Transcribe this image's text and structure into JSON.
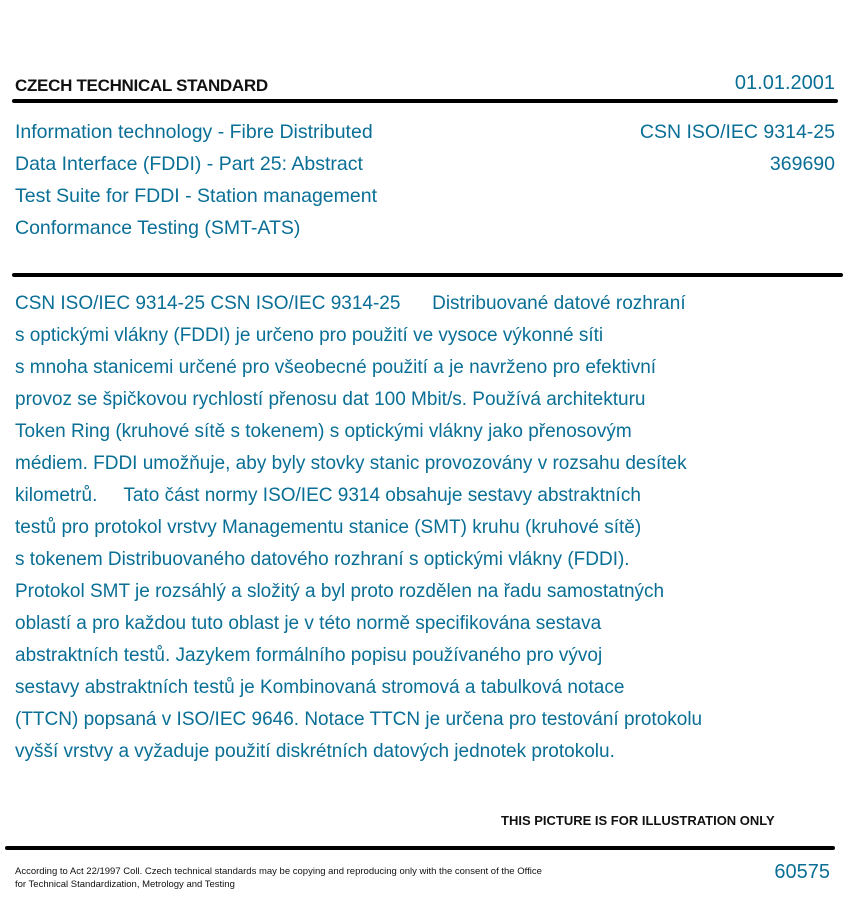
{
  "header": {
    "label": "CZECH TECHNICAL STANDARD",
    "date": "01.01.2001"
  },
  "title_lines": [
    "Information technology - Fibre Distributed",
    "Data Interface (FDDI) - Part 25: Abstract",
    "Test Suite for FDDI - Station management",
    "Conformance Testing (SMT-ATS)"
  ],
  "code": {
    "standard": "CSN ISO/IEC 9314-25",
    "catalog_number": "369690"
  },
  "body_lines": [
    "CSN ISO/IEC 9314-25 CSN ISO/IEC 9314-25      Distribuované datové rozhraní",
    "s optickými vlákny (FDDI) je určeno pro použití ve vysoce výkonné síti",
    "s mnoha stanicemi určené pro všeobecné použití a je navrženo pro efektivní",
    "provoz se špičkovou rychlostí přenosu dat 100 Mbit/s. Používá architekturu",
    "Token Ring (kruhové sítě s tokenem) s optickými vlákny jako přenosovým",
    "médiem. FDDI umožňuje, aby byly stovky stanic provozovány v rozsahu desítek",
    "kilometrů.     Tato část normy ISO/IEC 9314 obsahuje sestavy abstraktních",
    "testů pro protokol vrstvy Managementu stanice (SMT) kruhu (kruhové sítě)",
    "s tokenem Distribuovaného datového rozhraní s optickými vlákny (FDDI).",
    "Protokol SMT je rozsáhlý a složitý a byl proto rozdělen na řadu samostatných",
    "oblastí a pro každou tuto oblast je v této normě specifikována sestava",
    "abstraktních testů. Jazykem formálního popisu používaného pro vývoj",
    "sestavy abstraktních testů je Kombinovaná stromová a tabulková notace",
    "(TTCN) popsaná v ISO/IEC 9646. Notace TTCN je určena pro testování protokolu",
    "vyšší vrstvy a vyžaduje použití diskrétních datových jednotek protokolu."
  ],
  "footer": {
    "illustration_note": "THIS PICTURE IS FOR ILLUSTRATION ONLY",
    "legal_line1": "According to Act 22/1997 Coll. Czech technical standards may be copying and reproducing only with the consent of the Office",
    "legal_line2": "for Technical Standardization, Metrology and Testing",
    "number": "60575"
  },
  "colors": {
    "text_accent": "#0a6f96",
    "rule": "#000000"
  }
}
